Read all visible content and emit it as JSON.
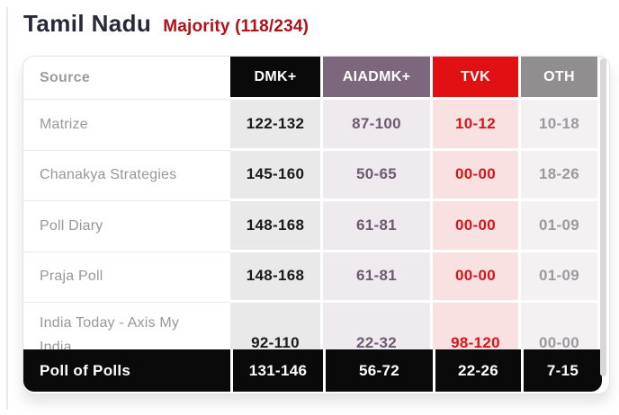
{
  "title": "Tamil Nadu",
  "majority_label": "Majority (118/234)",
  "colors": {
    "title_text": "#262a38",
    "majority_text": "#b01119",
    "footer_bg": "#0b0a0a",
    "footer_text": "#ffffff",
    "scrollbar": "#d9d7d8"
  },
  "table": {
    "columns": [
      {
        "key": "source",
        "label": "Source",
        "header_bg": "#ffffff",
        "header_text": "#9a9aa0"
      },
      {
        "key": "dmk",
        "label": "DMK+",
        "header_bg": "#0b0a0a",
        "header_text": "#ffffff",
        "cell_bg": "#e9e9e9",
        "cell_text": "#1a1a1a"
      },
      {
        "key": "aiadmk",
        "label": "AIADMK+",
        "header_bg": "#7c677c",
        "header_text": "#ffffff",
        "cell_bg": "#eeeaee",
        "cell_text": "#6e5a70"
      },
      {
        "key": "tvk",
        "label": "TVK",
        "header_bg": "#e11113",
        "header_text": "#ffffff",
        "cell_bg": "#f9e1e1",
        "cell_text": "#d8151a"
      },
      {
        "key": "oth",
        "label": "OTH",
        "header_bg": "#908e8f",
        "header_text": "#ffffff",
        "cell_bg": "#f3f1f2",
        "cell_text": "#9b9a9e"
      }
    ],
    "rows": [
      {
        "source": "Matrize",
        "values": [
          "122-132",
          "87-100",
          "10-12",
          "10-18"
        ]
      },
      {
        "source": "Chanakya Strategies",
        "values": [
          "145-160",
          "50-65",
          "00-00",
          "18-26"
        ]
      },
      {
        "source": "Poll Diary",
        "values": [
          "148-168",
          "61-81",
          "00-00",
          "01-09"
        ]
      },
      {
        "source": "Praja Poll",
        "values": [
          "148-168",
          "61-81",
          "00-00",
          "01-09"
        ]
      },
      {
        "source": "India Today - Axis My India",
        "values": [
          "92-110",
          "22-32",
          "98-120",
          "00-00"
        ]
      }
    ],
    "footer": {
      "label": "Poll of Polls",
      "values": [
        "131-146",
        "56-72",
        "22-26",
        "7-15"
      ]
    }
  },
  "chart_data": {
    "type": "table",
    "title": "Tamil Nadu",
    "subtitle": "Majority (118/234)",
    "columns": [
      "Source",
      "DMK+",
      "AIADMK+",
      "TVK",
      "OTH"
    ],
    "rows": [
      [
        "Matrize",
        "122-132",
        "87-100",
        "10-12",
        "10-18"
      ],
      [
        "Chanakya Strategies",
        "145-160",
        "50-65",
        "00-00",
        "18-26"
      ],
      [
        "Poll Diary",
        "148-168",
        "61-81",
        "00-00",
        "01-09"
      ],
      [
        "Praja Poll",
        "148-168",
        "61-81",
        "00-00",
        "01-09"
      ],
      [
        "India Today - Axis My India",
        "92-110",
        "22-32",
        "98-120",
        "00-00"
      ],
      [
        "Poll of Polls",
        "131-146",
        "56-72",
        "22-26",
        "7-15"
      ]
    ]
  }
}
